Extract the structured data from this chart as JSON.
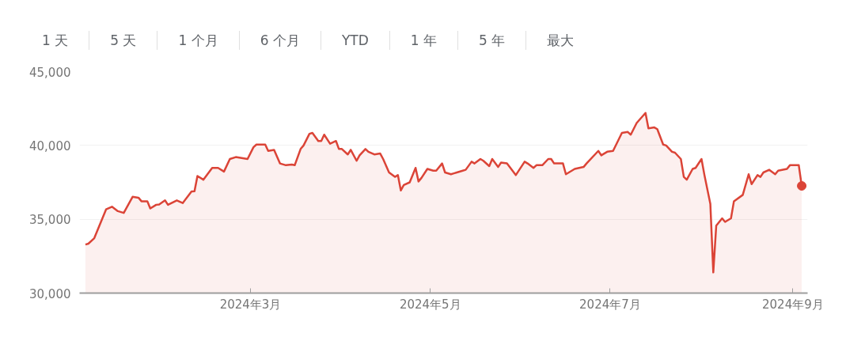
{
  "chart_data": {
    "type": "area",
    "annotations": [
      "1 天",
      "5 天",
      "1 个月",
      "6 个月",
      "YTD",
      "1 年",
      "5 年",
      "最大"
    ],
    "x": [
      "2024-01-05",
      "2024-01-06",
      "2024-01-08",
      "2024-01-12",
      "2024-01-14",
      "2024-01-16",
      "2024-01-18",
      "2024-01-21",
      "2024-01-23",
      "2024-01-24",
      "2024-01-26",
      "2024-01-27",
      "2024-01-29",
      "2024-01-30",
      "2024-02-01",
      "2024-02-02",
      "2024-02-05",
      "2024-02-07",
      "2024-02-10",
      "2024-02-11",
      "2024-02-12",
      "2024-02-14",
      "2024-02-17",
      "2024-02-19",
      "2024-02-21",
      "2024-02-23",
      "2024-02-25",
      "2024-02-29",
      "2024-03-02",
      "2024-03-03",
      "2024-03-06",
      "2024-03-07",
      "2024-03-09",
      "2024-03-11",
      "2024-03-13",
      "2024-03-15",
      "2024-03-16",
      "2024-03-18",
      "2024-03-19",
      "2024-03-21",
      "2024-03-22",
      "2024-03-24",
      "2024-03-25",
      "2024-03-26",
      "2024-03-28",
      "2024-03-30",
      "2024-03-31",
      "2024-04-01",
      "2024-04-03",
      "2024-04-04",
      "2024-04-06",
      "2024-04-07",
      "2024-04-09",
      "2024-04-10",
      "2024-04-12",
      "2024-04-14",
      "2024-04-15",
      "2024-04-17",
      "2024-04-19",
      "2024-04-20",
      "2024-04-21",
      "2024-04-22",
      "2024-04-24",
      "2024-04-26",
      "2024-04-27",
      "2024-04-28",
      "2024-04-30",
      "2024-05-02",
      "2024-05-03",
      "2024-05-05",
      "2024-05-06",
      "2024-05-08",
      "2024-05-09",
      "2024-05-10",
      "2024-05-12",
      "2024-05-13",
      "2024-05-15",
      "2024-05-16",
      "2024-05-18",
      "2024-05-19",
      "2024-05-21",
      "2024-05-22",
      "2024-05-24",
      "2024-05-25",
      "2024-05-27",
      "2024-05-30",
      "2024-06-02",
      "2024-06-03",
      "2024-06-05",
      "2024-06-06",
      "2024-06-08",
      "2024-06-10",
      "2024-06-11",
      "2024-06-12",
      "2024-06-15",
      "2024-06-16",
      "2024-06-19",
      "2024-06-22",
      "2024-06-23",
      "2024-06-27",
      "2024-06-28",
      "2024-06-30",
      "2024-07-02",
      "2024-07-05",
      "2024-07-07",
      "2024-07-08",
      "2024-07-10",
      "2024-07-13",
      "2024-07-14",
      "2024-07-16",
      "2024-07-17",
      "2024-07-19",
      "2024-07-20",
      "2024-07-22",
      "2024-07-23",
      "2024-07-25",
      "2024-07-26",
      "2024-07-27",
      "2024-07-29",
      "2024-07-30",
      "2024-08-01",
      "2024-08-02",
      "2024-08-04",
      "2024-08-05",
      "2024-08-06",
      "2024-08-08",
      "2024-08-09",
      "2024-08-11",
      "2024-08-12",
      "2024-08-15",
      "2024-08-17",
      "2024-08-18",
      "2024-08-20",
      "2024-08-21",
      "2024-08-22",
      "2024-08-24",
      "2024-08-26",
      "2024-08-27",
      "2024-08-30",
      "2024-08-31",
      "2024-09-03",
      "2024-09-04"
    ],
    "series": [
      {
        "color": "#db4437",
        "values": [
          33290,
          33350,
          33720,
          35670,
          35850,
          35550,
          35430,
          36520,
          36460,
          36220,
          36220,
          35730,
          35980,
          36000,
          36280,
          35980,
          36280,
          36100,
          36890,
          36900,
          37930,
          37680,
          38480,
          38480,
          38230,
          39080,
          39210,
          39080,
          39880,
          40060,
          40060,
          39630,
          39700,
          38780,
          38660,
          38700,
          38660,
          39760,
          40000,
          40790,
          40850,
          40300,
          40300,
          40730,
          40120,
          40300,
          39760,
          39760,
          39390,
          39700,
          38960,
          39330,
          39760,
          39570,
          39390,
          39450,
          39080,
          38170,
          37870,
          37990,
          36950,
          37320,
          37500,
          38480,
          37560,
          37800,
          38410,
          38290,
          38290,
          38780,
          38170,
          38050,
          38110,
          38170,
          38290,
          38350,
          38900,
          38780,
          39080,
          38960,
          38600,
          39080,
          38540,
          38840,
          38780,
          37990,
          38900,
          38780,
          38480,
          38660,
          38660,
          39080,
          39080,
          38780,
          38780,
          38050,
          38410,
          38540,
          38780,
          39630,
          39330,
          39570,
          39630,
          40850,
          40910,
          40730,
          41520,
          42200,
          41160,
          41220,
          41100,
          40060,
          40000,
          39570,
          39510,
          39080,
          37870,
          37680,
          38410,
          38480,
          39080,
          37990,
          36040,
          31400,
          34570,
          35060,
          34820,
          35060,
          36220,
          36650,
          38050,
          37380,
          37990,
          37870,
          38170,
          38350,
          38050,
          38290,
          38410,
          38660,
          38660,
          37260
        ]
      }
    ],
    "xlim": [
      "2024-01-03",
      "2024-09-06"
    ],
    "xticks": [
      {
        "value": "2024-03-01",
        "label": "2024年3月"
      },
      {
        "value": "2024-05-01",
        "label": "2024年5月"
      },
      {
        "value": "2024-07-01",
        "label": "2024年7月"
      },
      {
        "value": "2024-09-01",
        "label": "2024年9月"
      }
    ],
    "ylim": [
      30000,
      45000
    ],
    "yticks": [
      {
        "value": 30000,
        "label": "30,000"
      },
      {
        "value": 35000,
        "label": "35,000"
      },
      {
        "value": 40000,
        "label": "40,000"
      },
      {
        "value": 45000,
        "label": "45,000"
      }
    ],
    "grid": "y"
  }
}
